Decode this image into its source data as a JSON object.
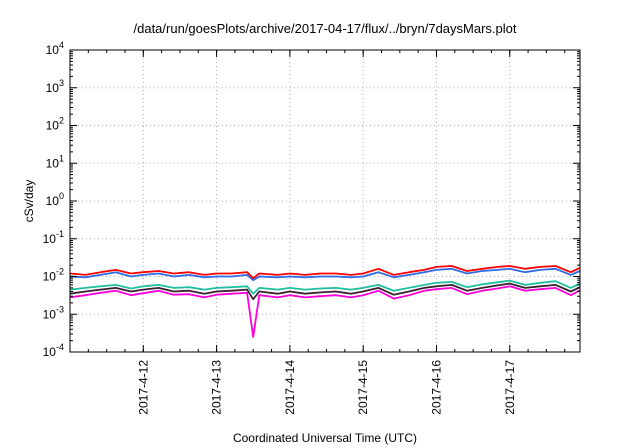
{
  "chart_data": {
    "type": "line",
    "title": "/data/run/goesPlots/archive/2017-04-17/flux/../bryn/7daysMars.plot",
    "xlabel": "Coordinated Universal Time (UTC)",
    "ylabel": "cSv/day",
    "yscale": "log",
    "ylim": [
      0.0001,
      10000
    ],
    "xlim": [
      "2017-04-11 00:00",
      "2017-04-17 23:00"
    ],
    "y_ticks": [
      {
        "base": "10",
        "exp": "-4",
        "value": 0.0001
      },
      {
        "base": "10",
        "exp": "-3",
        "value": 0.001
      },
      {
        "base": "10",
        "exp": "-2",
        "value": 0.01
      },
      {
        "base": "10",
        "exp": "-1",
        "value": 0.1
      },
      {
        "base": "10",
        "exp": "0",
        "value": 1
      },
      {
        "base": "10",
        "exp": "1",
        "value": 10
      },
      {
        "base": "10",
        "exp": "2",
        "value": 100
      },
      {
        "base": "10",
        "exp": "3",
        "value": 1000
      },
      {
        "base": "10",
        "exp": "4",
        "value": 10000
      }
    ],
    "x_ticks": [
      {
        "label": "2017-4-12",
        "value": "2017-04-12"
      },
      {
        "label": "2017-4-13",
        "value": "2017-04-13"
      },
      {
        "label": "2017-4-14",
        "value": "2017-04-14"
      },
      {
        "label": "2017-4-15",
        "value": "2017-04-15"
      },
      {
        "label": "2017-4-16",
        "value": "2017-04-16"
      },
      {
        "label": "2017-4-17",
        "value": "2017-04-17"
      }
    ],
    "grid": true,
    "legend": "none",
    "x": [
      "2017-04-11 00:00",
      "2017-04-11 05:00",
      "2017-04-11 10:00",
      "2017-04-11 15:00",
      "2017-04-11 20:00",
      "2017-04-12 00:00",
      "2017-04-12 05:00",
      "2017-04-12 10:00",
      "2017-04-12 15:00",
      "2017-04-12 20:00",
      "2017-04-13 00:00",
      "2017-04-13 05:00",
      "2017-04-13 10:00",
      "2017-04-13 12:00",
      "2017-04-13 14:00",
      "2017-04-13 20:00",
      "2017-04-14 00:00",
      "2017-04-14 05:00",
      "2017-04-14 10:00",
      "2017-04-14 15:00",
      "2017-04-14 20:00",
      "2017-04-15 00:00",
      "2017-04-15 05:00",
      "2017-04-15 10:00",
      "2017-04-15 15:00",
      "2017-04-15 20:00",
      "2017-04-16 00:00",
      "2017-04-16 05:00",
      "2017-04-16 10:00",
      "2017-04-16 15:00",
      "2017-04-16 20:00",
      "2017-04-17 00:00",
      "2017-04-17 05:00",
      "2017-04-17 10:00",
      "2017-04-17 15:00",
      "2017-04-17 20:00",
      "2017-04-17 23:00"
    ],
    "series": [
      {
        "color": "#ff0000",
        "values": [
          0.012,
          0.011,
          0.013,
          0.015,
          0.012,
          0.013,
          0.014,
          0.012,
          0.013,
          0.011,
          0.012,
          0.012,
          0.013,
          0.009,
          0.012,
          0.011,
          0.012,
          0.011,
          0.012,
          0.012,
          0.011,
          0.012,
          0.016,
          0.011,
          0.013,
          0.015,
          0.018,
          0.019,
          0.014,
          0.016,
          0.018,
          0.019,
          0.016,
          0.018,
          0.019,
          0.013,
          0.017
        ]
      },
      {
        "color": "#2e6be6",
        "values": [
          0.01,
          0.0095,
          0.011,
          0.013,
          0.01,
          0.011,
          0.012,
          0.01,
          0.011,
          0.0095,
          0.01,
          0.01,
          0.011,
          0.008,
          0.01,
          0.0095,
          0.01,
          0.0095,
          0.01,
          0.01,
          0.0095,
          0.01,
          0.013,
          0.0095,
          0.011,
          0.013,
          0.015,
          0.016,
          0.012,
          0.014,
          0.015,
          0.016,
          0.013,
          0.015,
          0.016,
          0.011,
          0.014
        ]
      },
      {
        "color": "#1fbf9f",
        "values": [
          0.0045,
          0.005,
          0.0055,
          0.006,
          0.0048,
          0.0055,
          0.006,
          0.005,
          0.0052,
          0.0045,
          0.005,
          0.0052,
          0.0055,
          0.0035,
          0.005,
          0.0045,
          0.005,
          0.0045,
          0.0048,
          0.005,
          0.0045,
          0.005,
          0.006,
          0.0042,
          0.005,
          0.006,
          0.0068,
          0.0072,
          0.0052,
          0.0062,
          0.007,
          0.0078,
          0.006,
          0.0068,
          0.0075,
          0.005,
          0.0065
        ]
      },
      {
        "color": "#3a2030",
        "values": [
          0.0035,
          0.004,
          0.0045,
          0.005,
          0.004,
          0.0045,
          0.005,
          0.004,
          0.0042,
          0.0035,
          0.004,
          0.0042,
          0.0045,
          0.0025,
          0.004,
          0.0035,
          0.004,
          0.0035,
          0.0038,
          0.004,
          0.0035,
          0.004,
          0.005,
          0.0033,
          0.004,
          0.005,
          0.0055,
          0.006,
          0.0042,
          0.005,
          0.0058,
          0.0065,
          0.005,
          0.0055,
          0.006,
          0.004,
          0.0052
        ]
      },
      {
        "color": "#ff00dd",
        "values": [
          0.0028,
          0.0032,
          0.0037,
          0.0042,
          0.0032,
          0.0036,
          0.0042,
          0.0033,
          0.0034,
          0.0028,
          0.0033,
          0.0035,
          0.0037,
          0.00025,
          0.0032,
          0.0028,
          0.0032,
          0.0028,
          0.003,
          0.0032,
          0.0028,
          0.0032,
          0.0042,
          0.0026,
          0.0032,
          0.0042,
          0.0046,
          0.005,
          0.0034,
          0.0042,
          0.0048,
          0.0055,
          0.0042,
          0.0046,
          0.005,
          0.0032,
          0.0043
        ]
      }
    ]
  }
}
